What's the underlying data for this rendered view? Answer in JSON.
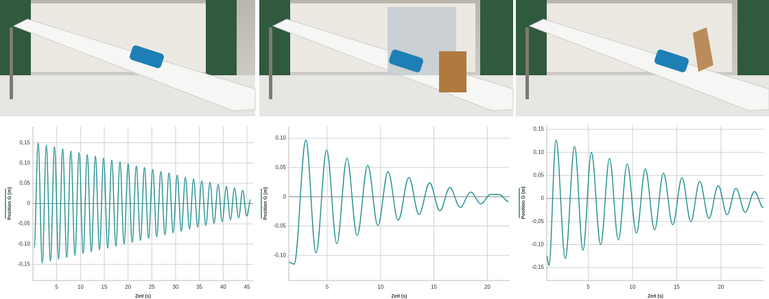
{
  "chart_data": [
    {
      "type": "line",
      "x_label": "Zeit (s)",
      "y_label": "Position G (m)",
      "color": "#1f8e8e",
      "grid": true,
      "xlim": [
        0,
        46.3
      ],
      "ylim": [
        -0.19,
        0.19
      ],
      "xticks": [
        5,
        10,
        15,
        20,
        25,
        30,
        35,
        40,
        45
      ],
      "yticks": [
        {
          "value": -0.15,
          "label": "-0,15"
        },
        {
          "value": -0.1,
          "label": "-0,10"
        },
        {
          "value": -0.05,
          "label": "-0,05"
        },
        0,
        {
          "value": 0.05,
          "label": "0,05"
        },
        {
          "value": 0.1,
          "label": "0,10"
        },
        {
          "value": 0.15,
          "label": "0,15"
        }
      ],
      "x": [
        0.25,
        1.1,
        1.96,
        2.82,
        3.68,
        4.54,
        5.4,
        6.26,
        7.12,
        7.98,
        8.84,
        9.7,
        10.56,
        11.42,
        12.28,
        13.14,
        14.0,
        14.86,
        15.72,
        16.58,
        17.44,
        18.3,
        19.16,
        20.02,
        20.88,
        21.74,
        22.6,
        23.46,
        24.32,
        25.18,
        26.04,
        26.9,
        27.76,
        28.62,
        29.48,
        30.34,
        31.2,
        32.06,
        32.92,
        33.78,
        34.64,
        35.5,
        36.36,
        37.22,
        38.08,
        38.94,
        39.8,
        40.66,
        41.52,
        42.38,
        43.24,
        44.1,
        44.96,
        45.8
      ],
      "values": [
        -0.11,
        0.149,
        -0.147,
        0.144,
        -0.142,
        0.14,
        -0.137,
        0.135,
        -0.133,
        0.13,
        -0.128,
        0.126,
        -0.123,
        0.121,
        -0.119,
        0.117,
        -0.114,
        0.112,
        -0.11,
        0.107,
        -0.105,
        0.103,
        -0.1,
        0.098,
        -0.096,
        0.093,
        -0.091,
        0.089,
        -0.086,
        0.084,
        -0.082,
        0.079,
        -0.077,
        0.075,
        -0.072,
        0.07,
        -0.068,
        0.065,
        -0.063,
        0.061,
        -0.058,
        0.056,
        -0.054,
        0.052,
        -0.049,
        0.047,
        -0.045,
        0.042,
        -0.04,
        0.038,
        -0.035,
        0.033,
        -0.031,
        0.01
      ]
    },
    {
      "type": "line",
      "x_label": "Zeit (s)",
      "y_label": "Position G (m)",
      "color": "#1f8e8e",
      "grid": true,
      "xlim": [
        1.4,
        22.1
      ],
      "ylim": [
        -0.143,
        0.12
      ],
      "xticks": [
        5,
        10,
        15,
        20
      ],
      "yticks": [
        {
          "value": -0.1,
          "label": "-0,10"
        },
        {
          "value": -0.05,
          "label": "-0,05"
        },
        0,
        {
          "value": 0.05,
          "label": "0,05"
        },
        {
          "value": 0.1,
          "label": "0,10"
        }
      ],
      "x": [
        1.4,
        1.9,
        3.0,
        3.95,
        4.95,
        5.9,
        6.85,
        7.8,
        8.8,
        9.75,
        10.7,
        11.65,
        12.65,
        13.6,
        14.6,
        15.55,
        16.5,
        17.45,
        18.45,
        19.4,
        20.3,
        21.1,
        22.0
      ],
      "values": [
        -0.112,
        -0.115,
        0.097,
        -0.096,
        0.08,
        -0.08,
        0.066,
        -0.066,
        0.054,
        -0.049,
        0.043,
        -0.04,
        0.033,
        -0.03,
        0.024,
        -0.024,
        0.016,
        -0.018,
        0.008,
        -0.012,
        0.004,
        0.004,
        -0.008
      ]
    },
    {
      "type": "line",
      "x_label": "Zeit (s)",
      "y_label": "Position G (m)",
      "color": "#1f8e8e",
      "grid": true,
      "xlim": [
        0.3,
        24.9
      ],
      "ylim": [
        -0.178,
        0.159
      ],
      "xticks": [
        5,
        10,
        15,
        20
      ],
      "yticks": [
        {
          "value": -0.15,
          "label": "-0,15"
        },
        {
          "value": -0.1,
          "label": "-0,10"
        },
        {
          "value": -0.05,
          "label": "-0,05"
        },
        0,
        {
          "value": 0.05,
          "label": "0,05"
        },
        {
          "value": 0.1,
          "label": "0,10"
        },
        {
          "value": 0.15,
          "label": "0,15"
        }
      ],
      "x": [
        0.3,
        0.55,
        1.35,
        2.4,
        3.45,
        4.4,
        5.35,
        6.4,
        7.4,
        8.4,
        9.4,
        10.45,
        11.45,
        12.5,
        13.5,
        14.55,
        15.6,
        16.6,
        17.6,
        18.65,
        19.7,
        20.7,
        21.7,
        22.75,
        23.8,
        24.8
      ],
      "values": [
        -0.125,
        -0.145,
        0.127,
        -0.13,
        0.113,
        -0.112,
        0.1,
        -0.1,
        0.087,
        -0.09,
        0.075,
        -0.075,
        0.064,
        -0.068,
        0.055,
        -0.057,
        0.045,
        -0.05,
        0.037,
        -0.043,
        0.028,
        -0.035,
        0.022,
        -0.03,
        0.015,
        -0.02
      ]
    }
  ]
}
